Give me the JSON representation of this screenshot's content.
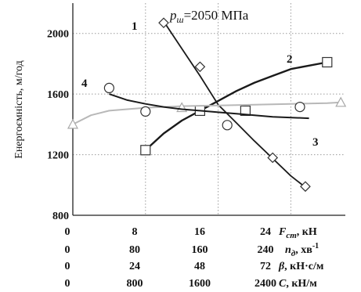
{
  "chart_data": {
    "type": "line",
    "ylabel": "Енергоємність, м/год",
    "annotation": "p_ш=2050 МПа",
    "annotation_parts": {
      "symbol": "p",
      "subscript": "ш",
      "value": "=2050 МПа"
    },
    "ylim": [
      800,
      2200
    ],
    "yticks": [
      "800",
      "1200",
      "1600",
      "2000"
    ],
    "xlim": [
      0,
      30
    ],
    "xticks": [
      0,
      8,
      16,
      24
    ],
    "grid": true,
    "axis_rows": [
      {
        "values": [
          "0",
          "8",
          "16",
          "24"
        ],
        "label": "F_ст, кН",
        "label_main": "F",
        "label_sub": "ст",
        "label_rest": ", кН"
      },
      {
        "values": [
          "0",
          "80",
          "160",
          "240"
        ],
        "label": "n_д, хв-1",
        "label_main": "n",
        "label_sub": "д",
        "label_rest": ", хв",
        "label_sup": "-1"
      },
      {
        "values": [
          "0",
          "24",
          "48",
          "72"
        ],
        "label": "β, кН·с/м",
        "label_main": "β",
        "label_sub": "",
        "label_rest": ", кН·с/м"
      },
      {
        "values": [
          "0",
          "800",
          "1600",
          "2400"
        ],
        "label": "C, кН/м",
        "label_main": "C",
        "label_sub": "",
        "label_rest": ", кН/м"
      }
    ],
    "series": [
      {
        "label": "1",
        "marker": "diamond",
        "curve": [
          [
            10,
            2080
          ],
          [
            12,
            1900
          ],
          [
            14,
            1720
          ],
          [
            16,
            1530
          ],
          [
            18,
            1410
          ],
          [
            20,
            1290
          ],
          [
            22,
            1175
          ],
          [
            24,
            1060
          ],
          [
            25.6,
            985
          ]
        ],
        "points": [
          [
            10,
            2070
          ],
          [
            14,
            1780
          ],
          [
            22,
            1180
          ],
          [
            25.6,
            990
          ]
        ]
      },
      {
        "label": "2",
        "marker": "square",
        "curve": [
          [
            8,
            1230
          ],
          [
            10,
            1340
          ],
          [
            12,
            1425
          ],
          [
            14,
            1490
          ],
          [
            16,
            1555
          ],
          [
            18,
            1620
          ],
          [
            20,
            1675
          ],
          [
            22,
            1720
          ],
          [
            24,
            1765
          ],
          [
            28,
            1810
          ]
        ],
        "points": [
          [
            8,
            1230
          ],
          [
            14,
            1490
          ],
          [
            19,
            1490
          ],
          [
            28,
            1810
          ]
        ]
      },
      {
        "label": "3",
        "marker": "triangle",
        "curve": [
          [
            0,
            1400
          ],
          [
            2,
            1460
          ],
          [
            4,
            1490
          ],
          [
            8,
            1510
          ],
          [
            12,
            1520
          ],
          [
            16,
            1525
          ],
          [
            20,
            1530
          ],
          [
            24,
            1535
          ],
          [
            28,
            1540
          ],
          [
            29.5,
            1545
          ]
        ],
        "points": [
          [
            0,
            1400
          ],
          [
            12,
            1510
          ],
          [
            29.5,
            1545
          ]
        ]
      },
      {
        "label": "4",
        "marker": "circle",
        "curve": [
          [
            4,
            1600
          ],
          [
            6,
            1560
          ],
          [
            8,
            1535
          ],
          [
            10,
            1515
          ],
          [
            12,
            1500
          ],
          [
            14,
            1490
          ],
          [
            16,
            1480
          ],
          [
            18,
            1470
          ],
          [
            20,
            1460
          ],
          [
            22,
            1450
          ],
          [
            26,
            1440
          ]
        ],
        "points": [
          [
            4,
            1640
          ],
          [
            8,
            1485
          ],
          [
            17,
            1395
          ],
          [
            25,
            1515
          ]
        ]
      }
    ]
  }
}
